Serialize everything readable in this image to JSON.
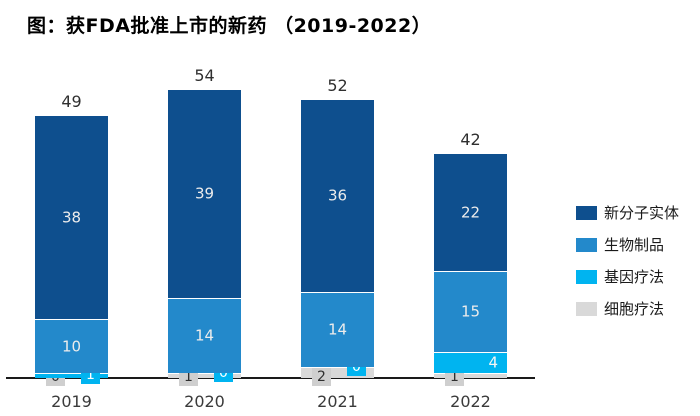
{
  "title": "图：获FDA批准上市的新药 （2019-2022）",
  "colors": {
    "nme_dark_blue": "#0e4f8e",
    "biologics_blue": "#2389cb",
    "gene_therapy_cyan": "#00b4f0",
    "cell_therapy_gray": "#d9d9d9",
    "axis": "#1a1a1a",
    "badge_gray_bg": "#cfcfcf"
  },
  "chart_data": {
    "type": "bar",
    "stacked": true,
    "title": "图：获FDA批准上市的新药 （2019-2022）",
    "categories": [
      "2019",
      "2020",
      "2021",
      "2022"
    ],
    "series": [
      {
        "name": "新分子实体",
        "color": "#0e4f8e",
        "values": [
          38,
          39,
          36,
          22
        ]
      },
      {
        "name": "生物制品",
        "color": "#2389cb",
        "values": [
          10,
          14,
          14,
          15
        ]
      },
      {
        "name": "基因疗法",
        "color": "#00b4f0",
        "values": [
          1,
          0,
          0,
          4
        ]
      },
      {
        "name": "细胞疗法",
        "color": "#d9d9d9",
        "values": [
          0,
          1,
          2,
          1
        ]
      }
    ],
    "totals": [
      49,
      54,
      52,
      42
    ],
    "xlabel": "",
    "ylabel": "",
    "ylim": [
      0,
      58
    ],
    "grid": false,
    "legend_position": "right"
  }
}
